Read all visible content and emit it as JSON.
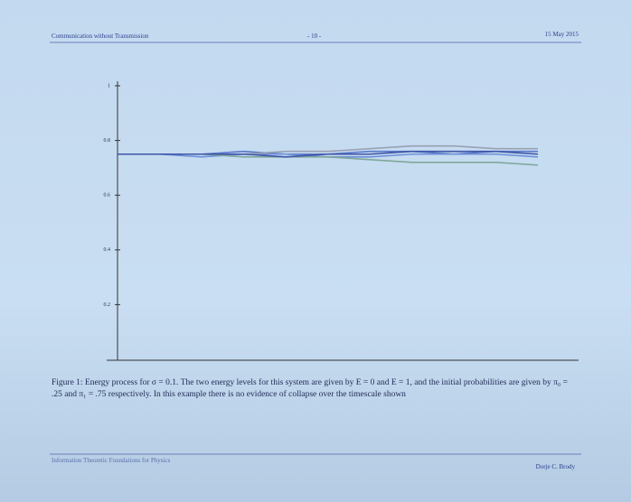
{
  "header": {
    "title": "Communication without Transmission",
    "page": "- 10 -",
    "date": "15 May 2015"
  },
  "chart_data": {
    "type": "line",
    "ylim": [
      0,
      1
    ],
    "yticks": [
      0.2,
      0.4,
      0.6,
      0.8,
      1
    ],
    "series": [
      {
        "color": "#5a78c8",
        "values": [
          0.75,
          0.75,
          0.75,
          0.76,
          0.75,
          0.75,
          0.76,
          0.76,
          0.75,
          0.76,
          0.76
        ]
      },
      {
        "color": "#6d8fd8",
        "values": [
          0.75,
          0.75,
          0.74,
          0.75,
          0.75,
          0.74,
          0.74,
          0.75,
          0.75,
          0.75,
          0.74
        ]
      },
      {
        "color": "#7fa89a",
        "values": [
          0.75,
          0.75,
          0.75,
          0.74,
          0.74,
          0.74,
          0.73,
          0.72,
          0.72,
          0.72,
          0.71
        ]
      },
      {
        "color": "#9aa0b4",
        "values": [
          0.75,
          0.75,
          0.75,
          0.75,
          0.76,
          0.76,
          0.77,
          0.78,
          0.78,
          0.77,
          0.77
        ]
      },
      {
        "color": "#3f55a8",
        "values": [
          0.75,
          0.75,
          0.75,
          0.75,
          0.74,
          0.75,
          0.75,
          0.76,
          0.76,
          0.76,
          0.75
        ]
      }
    ]
  },
  "caption": "Figure 1: Energy process for σ = 0.1. The two energy levels for this system are given by E = 0 and E = 1, and the initial probabilities are given by π₀ = .25 and π₁ = .75 respectively. In this example there is no evidence of collapse over the timescale shown",
  "footer": {
    "title": "Information Theoretic Foundations for Physics",
    "author": "Dorje C. Brody"
  }
}
